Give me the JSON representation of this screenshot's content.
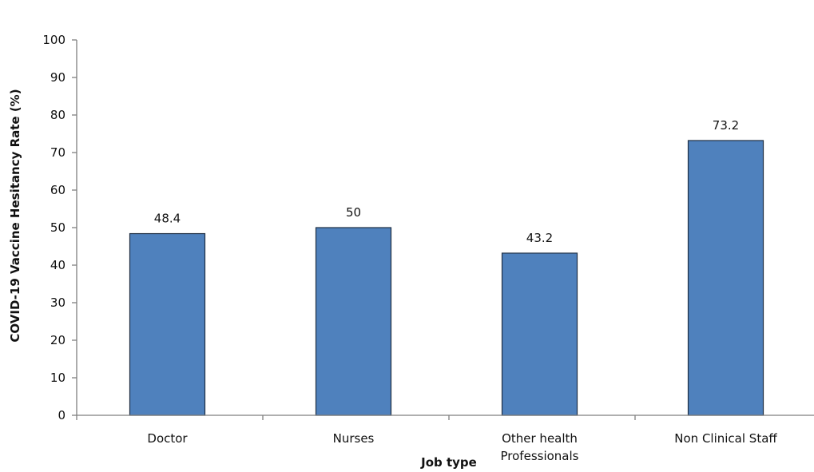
{
  "chart_data": {
    "type": "bar",
    "categories": [
      "Doctor",
      "Nurses",
      "Other health Professionals",
      "Non Clinical Staff"
    ],
    "category_lines": [
      [
        "Doctor"
      ],
      [
        "Nurses"
      ],
      [
        "Other health",
        "Professionals"
      ],
      [
        "Non Clinical Staff"
      ]
    ],
    "values": [
      48.4,
      50,
      43.2,
      73.2
    ],
    "data_labels": [
      "48.4",
      "50",
      "43.2",
      "73.2"
    ],
    "xlabel": "Job type",
    "ylabel": "COVID-19   Vaccine Hesitancy Rate (%)",
    "ylim": [
      0,
      100
    ],
    "yticks": [
      0,
      10,
      20,
      30,
      40,
      50,
      60,
      70,
      80,
      90,
      100
    ],
    "grid": false,
    "legend": "none",
    "bar_color": "#4f81bd"
  }
}
